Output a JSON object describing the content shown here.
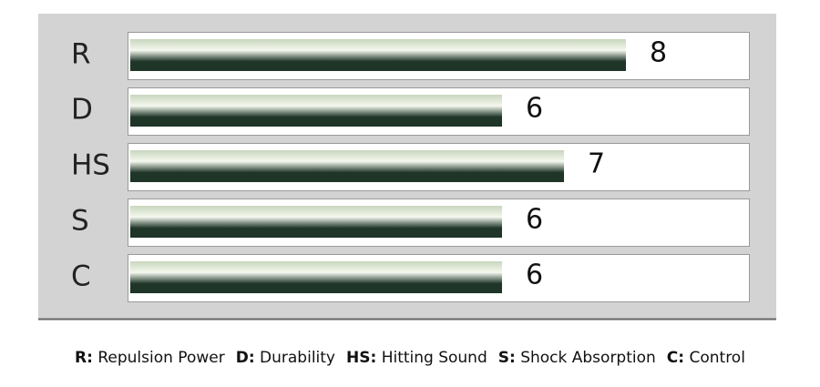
{
  "chart_data": {
    "type": "bar",
    "orientation": "horizontal",
    "categories": [
      "R",
      "D",
      "HS",
      "S",
      "C"
    ],
    "values": [
      8,
      6,
      7,
      6,
      6
    ],
    "color": "#1e3527",
    "xlim": [
      0,
      10
    ],
    "legend_items": [
      {
        "key": "R:",
        "label": "Repulsion Power"
      },
      {
        "key": "D:",
        "label": "Durability"
      },
      {
        "key": "HS:",
        "label": "Hitting Sound"
      },
      {
        "key": "S:",
        "label": "Shock Absorption"
      },
      {
        "key": "C:",
        "label": "Control"
      }
    ]
  }
}
